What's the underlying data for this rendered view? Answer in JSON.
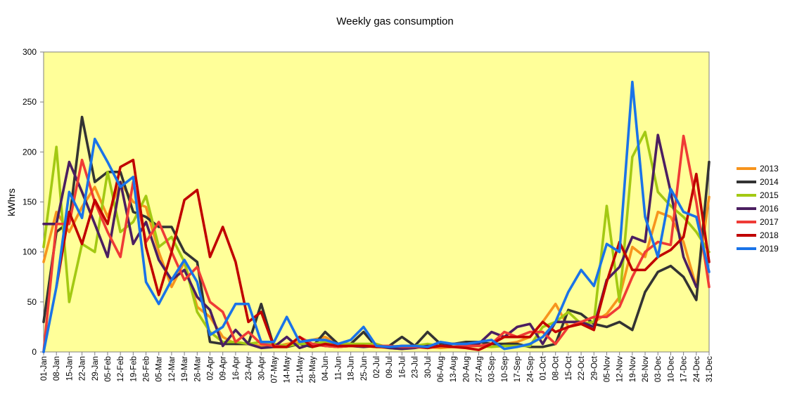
{
  "chart_data": {
    "type": "line",
    "title": "Weekly gas consumption",
    "xlabel": "",
    "ylabel": "kWhrs",
    "ylim": [
      0,
      300
    ],
    "yticks": [
      0,
      50,
      100,
      150,
      200,
      250,
      300
    ],
    "grid": false,
    "legend_position": "right",
    "plot_background": "#ffff99",
    "categories": [
      "01-Jan",
      "08-Jan",
      "15-Jan",
      "22-Jan",
      "29-Jan",
      "05-Feb",
      "12-Feb",
      "19-Feb",
      "26-Feb",
      "05-Mar",
      "12-Mar",
      "19-Mar",
      "26-Mar",
      "02-Apr",
      "09-Apr",
      "16-Apr",
      "23-Apr",
      "30-Apr",
      "07-May",
      "14-May",
      "21-May",
      "28-May",
      "04-Jun",
      "11-Jun",
      "18-Jun",
      "25-Jun",
      "02-Jul",
      "09-Jul",
      "16-Jul",
      "23-Jul",
      "30-Jul",
      "06-Aug",
      "13-Aug",
      "20-Aug",
      "27-Aug",
      "03-Sep",
      "10-Sep",
      "17-Sep",
      "24-Sep",
      "01-Oct",
      "08-Oct",
      "15-Oct",
      "22-Oct",
      "29-Oct",
      "05-Nov",
      "12-Nov",
      "19-Nov",
      "26-Nov",
      "03-Dec",
      "10-Dec",
      "17-Dec",
      "24-Dec",
      "31-Dec"
    ],
    "series": [
      {
        "name": "2013",
        "color": "#f7941d",
        "values": [
          90,
          140,
          120,
          145,
          165,
          135,
          170,
          150,
          145,
          100,
          65,
          90,
          45,
          35,
          15,
          8,
          8,
          6,
          5,
          8,
          10,
          12,
          15,
          8,
          8,
          6,
          5,
          4,
          3,
          6,
          5,
          4,
          5,
          6,
          6,
          5,
          8,
          10,
          15,
          30,
          48,
          25,
          28,
          30,
          38,
          55,
          105,
          95,
          140,
          135,
          110,
          65,
          155
        ]
      },
      {
        "name": "2014",
        "color": "#333333",
        "values": [
          30,
          120,
          130,
          235,
          170,
          180,
          180,
          140,
          135,
          125,
          125,
          100,
          90,
          10,
          8,
          8,
          8,
          48,
          5,
          5,
          8,
          5,
          20,
          8,
          8,
          20,
          5,
          6,
          15,
          6,
          20,
          8,
          8,
          10,
          10,
          8,
          8,
          8,
          5,
          5,
          8,
          42,
          38,
          28,
          25,
          30,
          22,
          60,
          80,
          86,
          75,
          52,
          190
        ]
      },
      {
        "name": "2015",
        "color": "#a3c913",
        "values": [
          105,
          205,
          50,
          108,
          100,
          180,
          120,
          130,
          156,
          105,
          115,
          90,
          40,
          20,
          10,
          10,
          8,
          10,
          8,
          6,
          8,
          8,
          10,
          8,
          8,
          8,
          8,
          4,
          3,
          6,
          8,
          6,
          8,
          8,
          6,
          5,
          6,
          6,
          6,
          25,
          30,
          40,
          28,
          30,
          146,
          50,
          195,
          220,
          160,
          146,
          135,
          120,
          100
        ]
      },
      {
        "name": "2016",
        "color": "#4b1f61",
        "values": [
          128,
          128,
          190,
          160,
          128,
          95,
          170,
          108,
          130,
          92,
          72,
          82,
          55,
          42,
          6,
          22,
          8,
          4,
          5,
          15,
          4,
          8,
          6,
          5,
          6,
          5,
          6,
          4,
          3,
          4,
          6,
          6,
          8,
          8,
          8,
          20,
          15,
          25,
          28,
          8,
          30,
          30,
          30,
          25,
          72,
          85,
          115,
          110,
          217,
          160,
          95,
          65,
          null
        ]
      },
      {
        "name": "2017",
        "color": "#ef3b36",
        "values": [
          0,
          128,
          128,
          192,
          150,
          120,
          95,
          170,
          110,
          130,
          100,
          72,
          85,
          50,
          40,
          10,
          20,
          8,
          6,
          5,
          15,
          8,
          6,
          5,
          6,
          6,
          6,
          6,
          5,
          5,
          4,
          6,
          5,
          6,
          6,
          8,
          20,
          15,
          20,
          20,
          8,
          25,
          30,
          35,
          35,
          45,
          75,
          100,
          110,
          107,
          216,
          150,
          65
        ]
      },
      {
        "name": "2018",
        "color": "#c00000",
        "values": [
          null,
          65,
          140,
          108,
          152,
          128,
          185,
          192,
          105,
          57,
          100,
          152,
          162,
          95,
          125,
          90,
          30,
          40,
          5,
          5,
          15,
          5,
          8,
          6,
          6,
          6,
          5,
          5,
          6,
          6,
          4,
          6,
          5,
          4,
          2,
          8,
          15,
          15,
          15,
          30,
          20,
          25,
          28,
          22,
          70,
          110,
          82,
          82,
          95,
          102,
          115,
          178,
          90
        ]
      },
      {
        "name": "2019",
        "color": "#1a73e8",
        "values": [
          0,
          65,
          160,
          134,
          213,
          190,
          165,
          175,
          70,
          48,
          72,
          92,
          70,
          17,
          25,
          48,
          48,
          10,
          10,
          35,
          10,
          12,
          12,
          8,
          12,
          25,
          6,
          5,
          6,
          6,
          5,
          10,
          8,
          8,
          10,
          12,
          3,
          5,
          8,
          15,
          30,
          60,
          82,
          66,
          108,
          100,
          270,
          135,
          95,
          163,
          140,
          135,
          80
        ]
      }
    ]
  }
}
